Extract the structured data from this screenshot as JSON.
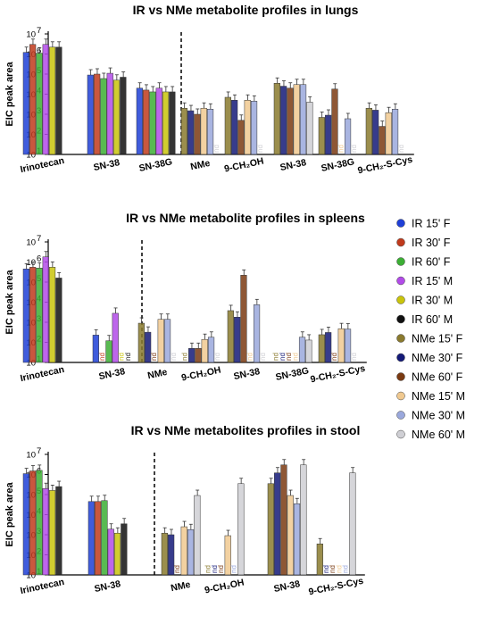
{
  "legend": [
    {
      "name": "IR 15' F",
      "color": "#1f3fd6"
    },
    {
      "name": "IR 30' F",
      "color": "#c03a1c"
    },
    {
      "name": "IR 60' F",
      "color": "#3cae34"
    },
    {
      "name": "IR 15' M",
      "color": "#b24be8"
    },
    {
      "name": "IR 30' M",
      "color": "#c9c40c"
    },
    {
      "name": "IR 60' M",
      "color": "#111111"
    },
    {
      "name": "NMe 15' F",
      "color": "#8a7a2e"
    },
    {
      "name": "NMe 30' F",
      "color": "#141a78"
    },
    {
      "name": "NMe 60' F",
      "color": "#7a3a12"
    },
    {
      "name": "NMe 15' M",
      "color": "#f0c990"
    },
    {
      "name": "NMe 30' M",
      "color": "#9aa8dc"
    },
    {
      "name": "NMe 60' M",
      "color": "#cfcfd4"
    }
  ],
  "chart_data": [
    {
      "type": "bar",
      "scale": "log",
      "title": "IR vs NMe metabolite profiles in lungs",
      "ylabel": "EIC peak area",
      "ylim_exp": [
        1,
        7
      ],
      "yticks": [
        "10",
        "10",
        "10",
        "10",
        "10",
        "10",
        "10"
      ],
      "ytick_exp": [
        "1",
        "2",
        "3",
        "4",
        "5",
        "6",
        "7"
      ],
      "nd_label": "nd",
      "groups": [
        {
          "label": "Irinotecan",
          "series": "IR",
          "values": [
            1200000.0,
            3000000.0,
            1100000.0,
            3000000.0,
            2200000.0,
            2200000.0
          ]
        },
        {
          "label": "SN-38",
          "series": "IR",
          "values": [
            90000.0,
            100000.0,
            60000.0,
            110000.0,
            50000.0,
            70000.0
          ]
        },
        {
          "label": "SN-38G",
          "series": "IR",
          "values": [
            20000.0,
            16000.0,
            13000.0,
            20000.0,
            13000.0,
            13000.0
          ]
        },
        {
          "label": "NMe",
          "series": "NMe",
          "values": [
            2000.0,
            1500.0,
            1000.0,
            2000.0,
            1800.0,
            null
          ]
        },
        {
          "label": "9-CH₂OH",
          "series": "NMe",
          "values": [
            7000.0,
            5000.0,
            500.0,
            5000.0,
            4500.0,
            null
          ]
        },
        {
          "label": "SN-38",
          "series": "NMe",
          "values": [
            35000.0,
            25000.0,
            20000.0,
            30000.0,
            30000.0,
            4000.0
          ]
        },
        {
          "label": "SN-38G",
          "series": "NMe",
          "values": [
            700.0,
            900.0,
            18000.0,
            null,
            600.0,
            null
          ]
        },
        {
          "label": "9-CH₂-S-Cys",
          "series": "NMe",
          "values": [
            2000.0,
            1600.0,
            250.0,
            1200.0,
            1800.0,
            null
          ]
        }
      ]
    },
    {
      "type": "bar",
      "scale": "log",
      "title": "IR vs NMe metabolite profiles in spleens",
      "ylabel": "EIC peak area",
      "ylim_exp": [
        1,
        7
      ],
      "yticks": [
        "10",
        "10",
        "10",
        "10",
        "10",
        "10",
        "10"
      ],
      "ytick_exp": [
        "1",
        "2",
        "3",
        "4",
        "5",
        "6",
        "7"
      ],
      "nd_label": "nd",
      "groups": [
        {
          "label": "Irinotecan",
          "series": "IR",
          "values": [
            450000.0,
            550000.0,
            500000.0,
            1800000.0,
            550000.0,
            160000.0
          ]
        },
        {
          "label": "SN-38",
          "series": "IR",
          "values": [
            230.0,
            null,
            120.0,
            2800.0,
            null,
            null
          ]
        },
        {
          "label": "NMe",
          "series": "NMe",
          "values": [
            900.0,
            320.0,
            null,
            1400.0,
            1400.0,
            null
          ]
        },
        {
          "label": "9-CH₂OH",
          "series": "NMe",
          "values": [
            null,
            50.0,
            50.0,
            140.0,
            180.0,
            null
          ]
        },
        {
          "label": "SN-38",
          "series": "NMe",
          "values": [
            3800.0,
            1800.0,
            220000.0,
            null,
            7500.0,
            null
          ]
        },
        {
          "label": "SN-38G",
          "series": "NMe",
          "values": [
            null,
            null,
            null,
            null,
            180.0,
            130.0
          ]
        },
        {
          "label": "9-CH₂-S-Cys",
          "series": "NMe",
          "values": [
            240.0,
            310.0,
            null,
            480.0,
            460.0,
            null
          ]
        }
      ]
    },
    {
      "type": "bar",
      "scale": "log",
      "title": "IR vs NMe metabolites profiles in stool",
      "ylabel": "EIC peak area",
      "ylim_exp": [
        1,
        7
      ],
      "yticks": [
        "10",
        "10",
        "10",
        "10",
        "10",
        "10",
        "10"
      ],
      "ytick_exp": [
        "1",
        "2",
        "3",
        "4",
        "5",
        "6",
        "7"
      ],
      "nd_label": "nd",
      "groups": [
        {
          "label": "Irinotecan",
          "series": "IR",
          "values": [
            1100000.0,
            1500000.0,
            1600000.0,
            200000.0,
            160000.0,
            250000.0
          ]
        },
        {
          "label": "SN-38",
          "series": "IR",
          "values": [
            45000.0,
            45000.0,
            50000.0,
            1900.0,
            1200.0,
            3500.0
          ]
        },
        {
          "label": "NMe",
          "series": "NMe",
          "values": [
            1200.0,
            1000.0,
            null,
            2500.0,
            1800.0,
            90000.0
          ]
        },
        {
          "label": "9-CH₂OH",
          "series": "NMe",
          "values": [
            null,
            null,
            null,
            900.0,
            null,
            350000.0
          ]
        },
        {
          "label": "SN-38",
          "series": "NMe",
          "values": [
            350000.0,
            1200000.0,
            3000000.0,
            90000.0,
            35000.0,
            3000000.0
          ]
        },
        {
          "label": "9-CH₂-S-Cys",
          "series": "NMe",
          "values": [
            350.0,
            null,
            null,
            null,
            null,
            1200000.0
          ]
        }
      ]
    }
  ]
}
